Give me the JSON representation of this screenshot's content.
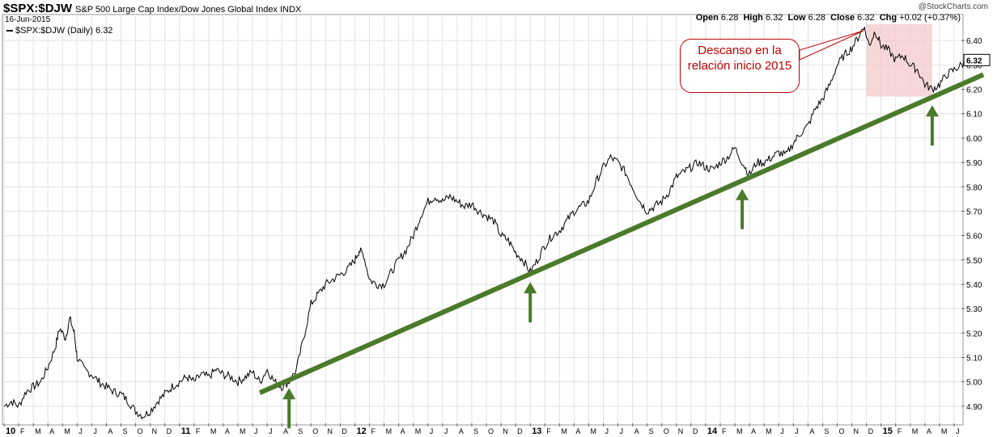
{
  "header": {
    "symbol": "$SPX:$DJW",
    "description": "S&P 500 Large Cap Index/Dow Jones Global Index  INDX",
    "date": "16-Jun-2015",
    "brand": "@StockCharts.com",
    "open_label": "Open",
    "open": "6.28",
    "high_label": "High",
    "high": "6.32",
    "low_label": "Low",
    "low": "6.28",
    "close_label": "Close",
    "close": "6.32",
    "chg_label": "Chg",
    "chg": "+0.02 (+0.37%)"
  },
  "legend": {
    "label": "$SPX:$DJW (Daily) 6.32"
  },
  "callout": {
    "text": "Descanso en la relación inicio 2015"
  },
  "colors": {
    "price": "#000000",
    "trend": "#4a7a2a",
    "highlight": "#f4c9c9",
    "callout": "#c00000",
    "grid": "#e2e2e2"
  },
  "chart_data": {
    "type": "line",
    "ylim": [
      4.83,
      6.5
    ],
    "yticks": [
      "6.40",
      "6.30",
      "6.20",
      "6.10",
      "6.00",
      "5.90",
      "5.80",
      "5.70",
      "5.60",
      "5.50",
      "5.40",
      "5.30",
      "5.20",
      "5.10",
      "5.00",
      "4.90"
    ],
    "ytick_values": [
      6.4,
      6.3,
      6.2,
      6.1,
      6.0,
      5.9,
      5.8,
      5.7,
      5.6,
      5.5,
      5.4,
      5.3,
      5.2,
      5.1,
      5.0,
      4.9
    ],
    "last_value_label": "6.32",
    "x_labels": [
      "10",
      "F",
      "M",
      "A",
      "M",
      "J",
      "J",
      "A",
      "S",
      "O",
      "N",
      "D",
      "11",
      "F",
      "M",
      "A",
      "M",
      "J",
      "J",
      "A",
      "S",
      "O",
      "N",
      "D",
      "12",
      "F",
      "M",
      "A",
      "M",
      "J",
      "J",
      "A",
      "S",
      "O",
      "N",
      "D",
      "13",
      "F",
      "M",
      "A",
      "M",
      "J",
      "J",
      "A",
      "S",
      "O",
      "N",
      "D",
      "14",
      "F",
      "M",
      "A",
      "M",
      "J",
      "J",
      "A",
      "S",
      "O",
      "N",
      "D",
      "15",
      "F",
      "M",
      "A",
      "M",
      "J"
    ],
    "x_bold": [
      "10",
      "11",
      "12",
      "13",
      "14",
      "15"
    ],
    "series": [
      {
        "values": [
          [
            0,
            4.9
          ],
          [
            0.5,
            4.92
          ],
          [
            1,
            4.9
          ],
          [
            1.5,
            4.96
          ],
          [
            2,
            4.98
          ],
          [
            2.5,
            5.0
          ],
          [
            3,
            5.06
          ],
          [
            3.5,
            5.14
          ],
          [
            3.8,
            5.22
          ],
          [
            4.2,
            5.18
          ],
          [
            4.5,
            5.26
          ],
          [
            4.8,
            5.2
          ],
          [
            5,
            5.1
          ],
          [
            5.5,
            5.05
          ],
          [
            6,
            5.03
          ],
          [
            6.5,
            5.0
          ],
          [
            7,
            4.98
          ],
          [
            7.5,
            4.96
          ],
          [
            8,
            4.95
          ],
          [
            8.5,
            4.92
          ],
          [
            9,
            4.88
          ],
          [
            9.5,
            4.86
          ],
          [
            10,
            4.88
          ],
          [
            10.5,
            4.92
          ],
          [
            11,
            4.95
          ],
          [
            11.5,
            4.98
          ],
          [
            12,
            5.0
          ],
          [
            12.5,
            5.02
          ],
          [
            13,
            5.0
          ],
          [
            13.5,
            5.03
          ],
          [
            14,
            5.02
          ],
          [
            14.5,
            5.05
          ],
          [
            15,
            5.03
          ],
          [
            15.5,
            5.02
          ],
          [
            16,
            5.0
          ],
          [
            16.5,
            5.02
          ],
          [
            17,
            5.04
          ],
          [
            17.5,
            5.0
          ],
          [
            18,
            5.05
          ],
          [
            18.5,
            5.0
          ],
          [
            19,
            4.98
          ],
          [
            19.5,
            5.0
          ],
          [
            20,
            5.05
          ],
          [
            20.5,
            5.18
          ],
          [
            21,
            5.32
          ],
          [
            21.5,
            5.36
          ],
          [
            22,
            5.4
          ],
          [
            22.5,
            5.42
          ],
          [
            23,
            5.44
          ],
          [
            23.5,
            5.46
          ],
          [
            24,
            5.5
          ],
          [
            24.3,
            5.54
          ],
          [
            24.6,
            5.52
          ],
          [
            25,
            5.42
          ],
          [
            25.5,
            5.4
          ],
          [
            26,
            5.4
          ],
          [
            26.5,
            5.45
          ],
          [
            27,
            5.5
          ],
          [
            27.5,
            5.54
          ],
          [
            28,
            5.6
          ],
          [
            28.5,
            5.68
          ],
          [
            29,
            5.74
          ],
          [
            29.5,
            5.76
          ],
          [
            30,
            5.74
          ],
          [
            30.5,
            5.76
          ],
          [
            31,
            5.74
          ],
          [
            31.5,
            5.72
          ],
          [
            32,
            5.73
          ],
          [
            32.5,
            5.7
          ],
          [
            33,
            5.68
          ],
          [
            33.5,
            5.66
          ],
          [
            34,
            5.6
          ],
          [
            34.5,
            5.58
          ],
          [
            35,
            5.53
          ],
          [
            35.5,
            5.5
          ],
          [
            36,
            5.45
          ],
          [
            36.5,
            5.5
          ],
          [
            37,
            5.56
          ],
          [
            37.5,
            5.6
          ],
          [
            38,
            5.62
          ],
          [
            38.5,
            5.66
          ],
          [
            39,
            5.7
          ],
          [
            39.5,
            5.72
          ],
          [
            40,
            5.74
          ],
          [
            40.5,
            5.82
          ],
          [
            41,
            5.88
          ],
          [
            41.5,
            5.92
          ],
          [
            42,
            5.9
          ],
          [
            42.5,
            5.86
          ],
          [
            43,
            5.8
          ],
          [
            43.5,
            5.74
          ],
          [
            44,
            5.7
          ],
          [
            44.5,
            5.72
          ],
          [
            45,
            5.74
          ],
          [
            45.5,
            5.78
          ],
          [
            46,
            5.84
          ],
          [
            46.5,
            5.86
          ],
          [
            47,
            5.88
          ],
          [
            47.5,
            5.9
          ],
          [
            48,
            5.88
          ],
          [
            48.5,
            5.87
          ],
          [
            49,
            5.9
          ],
          [
            49.5,
            5.92
          ],
          [
            50,
            5.96
          ],
          [
            50.5,
            5.9
          ],
          [
            51,
            5.85
          ],
          [
            51.5,
            5.9
          ],
          [
            52,
            5.9
          ],
          [
            52.5,
            5.92
          ],
          [
            53,
            5.94
          ],
          [
            53.5,
            5.93
          ],
          [
            54,
            5.98
          ],
          [
            54.5,
            6.02
          ],
          [
            55,
            6.05
          ],
          [
            55.5,
            6.12
          ],
          [
            56,
            6.16
          ],
          [
            56.5,
            6.22
          ],
          [
            57,
            6.3
          ],
          [
            57.5,
            6.34
          ],
          [
            58,
            6.37
          ],
          [
            58.5,
            6.42
          ],
          [
            58.8,
            6.46
          ],
          [
            59.2,
            6.38
          ],
          [
            59.6,
            6.44
          ],
          [
            60,
            6.38
          ],
          [
            60.5,
            6.36
          ],
          [
            61,
            6.32
          ],
          [
            61.5,
            6.34
          ],
          [
            62,
            6.3
          ],
          [
            62.5,
            6.28
          ],
          [
            63,
            6.22
          ],
          [
            63.5,
            6.2
          ],
          [
            64,
            6.22
          ],
          [
            64.5,
            6.26
          ],
          [
            65,
            6.28
          ],
          [
            65.5,
            6.3
          ],
          [
            66,
            6.32
          ]
        ]
      }
    ],
    "trendline": [
      [
        17.5,
        4.955
      ],
      [
        67,
        6.26
      ]
    ],
    "highlight_months": [
      59,
      63.5
    ],
    "arrows_at_months": [
      19.5,
      36,
      50.5,
      63.5
    ]
  }
}
